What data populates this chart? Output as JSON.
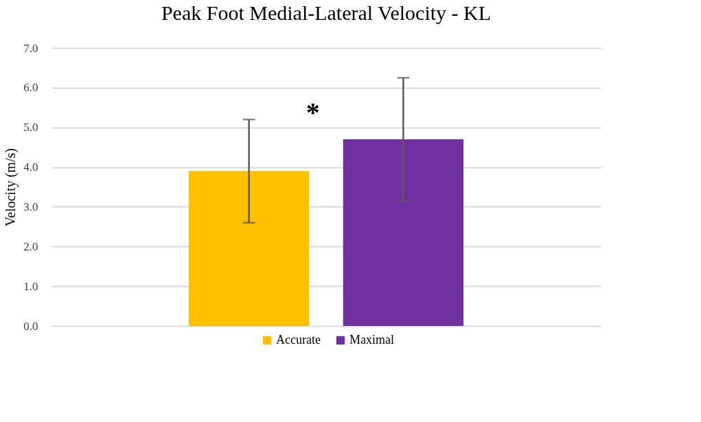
{
  "chart_data": {
    "type": "bar",
    "title": "Peak Foot Medial-Lateral Velocity - KL",
    "ylabel": "Velocity (m/s)",
    "categories": [
      null
    ],
    "series": [
      {
        "name": "Accurate",
        "color": "#ffc000",
        "values": [
          3.9
        ],
        "errors": [
          [
            2.6,
            5.2
          ]
        ]
      },
      {
        "name": "Maximal",
        "color": "#7030a0",
        "values": [
          4.7
        ],
        "errors": [
          [
            3.15,
            6.25
          ]
        ]
      }
    ],
    "ylim": [
      0,
      7
    ],
    "yticks": [
      {
        "value": 0,
        "label": "0.0"
      },
      {
        "value": 1,
        "label": "1.0"
      },
      {
        "value": 2,
        "label": "2.0"
      },
      {
        "value": 3,
        "label": "3.0"
      },
      {
        "value": 4,
        "label": "4.0"
      },
      {
        "value": 5,
        "label": "5.0"
      },
      {
        "value": 6,
        "label": "6.0"
      },
      {
        "value": 7,
        "label": "7.0"
      }
    ],
    "grid": "y",
    "legend": "bottom",
    "tick_labels": "y",
    "annotations": [
      "*"
    ]
  }
}
